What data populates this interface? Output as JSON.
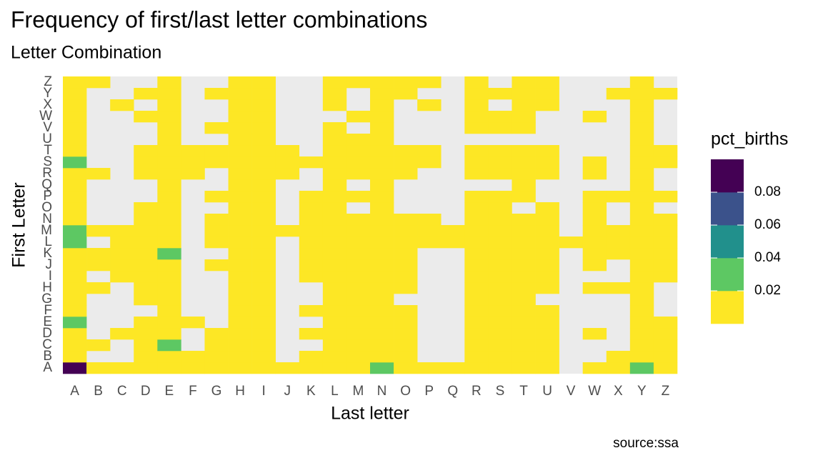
{
  "chart_data": {
    "type": "heatmap",
    "title": "Frequency of first/last letter combinations",
    "subtitle": "Letter Combination",
    "x_label": "Last letter",
    "y_label": "First Letter",
    "caption": "source:ssa",
    "legend_title": "pct_births",
    "x_categories": [
      "A",
      "B",
      "C",
      "D",
      "E",
      "F",
      "G",
      "H",
      "I",
      "J",
      "K",
      "L",
      "M",
      "N",
      "O",
      "P",
      "Q",
      "R",
      "S",
      "T",
      "U",
      "V",
      "W",
      "X",
      "Y",
      "Z"
    ],
    "y_categories": [
      "A",
      "B",
      "C",
      "D",
      "E",
      "F",
      "G",
      "H",
      "I",
      "J",
      "K",
      "L",
      "M",
      "N",
      "O",
      "P",
      "Q",
      "R",
      "S",
      "T",
      "U",
      "V",
      "W",
      "X",
      "Y",
      "Z"
    ],
    "legend_lim": [
      0,
      0.1
    ],
    "legend_ticks": [
      0.02,
      0.04,
      0.06,
      0.08
    ],
    "legend_colors": [
      "#fde725",
      "#5dc863",
      "#21908c",
      "#3b528b",
      "#440154"
    ],
    "missing_color": "#ebebeb",
    "values": [
      [
        0.09,
        0.01,
        0.01,
        0.01,
        0.01,
        0.01,
        0.01,
        0.01,
        0.01,
        0.01,
        0.01,
        0.01,
        0.01,
        0.03,
        0.01,
        0.01,
        0.01,
        0.01,
        0.01,
        0.01,
        0.01,
        null,
        0.01,
        0.01,
        0.03,
        0.01
      ],
      [
        0.01,
        null,
        null,
        0.01,
        0.01,
        0.01,
        0.01,
        0.01,
        0.01,
        null,
        0.01,
        0.01,
        0.01,
        0.01,
        0.01,
        null,
        null,
        0.01,
        0.01,
        0.01,
        0.01,
        null,
        null,
        0.01,
        0.01,
        0.01
      ],
      [
        0.01,
        0.01,
        null,
        0.01,
        0.03,
        null,
        0.01,
        0.01,
        0.01,
        null,
        null,
        0.01,
        0.01,
        0.01,
        0.01,
        null,
        null,
        0.01,
        0.01,
        0.01,
        0.01,
        null,
        null,
        null,
        0.01,
        0.01
      ],
      [
        0.01,
        null,
        0.01,
        0.01,
        0.01,
        null,
        0.01,
        0.01,
        0.01,
        null,
        0.01,
        0.01,
        0.01,
        0.01,
        0.01,
        null,
        null,
        0.01,
        0.01,
        0.01,
        0.01,
        null,
        0.01,
        null,
        0.01,
        0.01
      ],
      [
        0.03,
        null,
        null,
        0.01,
        0.01,
        0.01,
        null,
        0.01,
        0.01,
        null,
        null,
        0.01,
        0.01,
        0.01,
        0.01,
        null,
        null,
        0.01,
        0.01,
        0.01,
        0.01,
        null,
        null,
        null,
        0.01,
        0.01
      ],
      [
        0.01,
        null,
        null,
        null,
        0.01,
        null,
        null,
        0.01,
        0.01,
        null,
        0.01,
        0.01,
        0.01,
        0.01,
        0.01,
        null,
        null,
        0.01,
        0.01,
        0.01,
        0.01,
        null,
        null,
        null,
        0.01,
        null
      ],
      [
        0.01,
        null,
        null,
        0.01,
        0.01,
        null,
        null,
        0.01,
        0.01,
        null,
        null,
        0.01,
        0.01,
        0.01,
        null,
        null,
        null,
        0.01,
        0.01,
        0.01,
        null,
        null,
        null,
        null,
        0.01,
        null
      ],
      [
        0.01,
        0.01,
        null,
        0.01,
        0.01,
        null,
        null,
        0.01,
        0.01,
        null,
        null,
        0.01,
        0.01,
        0.01,
        0.01,
        null,
        null,
        0.01,
        0.01,
        0.01,
        0.01,
        null,
        0.01,
        0.01,
        0.01,
        null
      ],
      [
        0.01,
        null,
        0.01,
        0.01,
        0.01,
        null,
        null,
        0.01,
        0.01,
        null,
        0.01,
        0.01,
        0.01,
        0.01,
        0.01,
        null,
        null,
        0.01,
        0.01,
        0.01,
        0.01,
        null,
        null,
        null,
        0.01,
        0.01
      ],
      [
        0.01,
        0.01,
        0.01,
        0.01,
        0.01,
        null,
        0.01,
        0.01,
        0.01,
        null,
        0.01,
        0.01,
        0.01,
        0.01,
        0.01,
        null,
        null,
        0.01,
        0.01,
        0.01,
        0.01,
        null,
        0.01,
        null,
        0.01,
        0.01
      ],
      [
        0.01,
        0.01,
        0.01,
        0.01,
        0.03,
        null,
        null,
        0.01,
        0.01,
        null,
        0.01,
        0.01,
        0.01,
        0.01,
        0.01,
        null,
        null,
        0.01,
        0.01,
        0.01,
        0.01,
        null,
        0.01,
        0.01,
        0.01,
        0.01
      ],
      [
        0.03,
        null,
        0.01,
        0.01,
        0.01,
        null,
        0.01,
        0.01,
        0.01,
        null,
        0.01,
        0.01,
        0.01,
        0.01,
        0.01,
        0.01,
        0.01,
        0.01,
        0.01,
        0.01,
        0.01,
        0.01,
        0.01,
        0.01,
        0.01,
        0.01
      ],
      [
        0.03,
        0.01,
        0.01,
        0.01,
        0.01,
        null,
        0.01,
        0.01,
        0.01,
        0.01,
        0.01,
        0.01,
        0.01,
        0.01,
        0.01,
        0.01,
        0.01,
        0.01,
        0.01,
        0.01,
        0.01,
        null,
        0.01,
        0.01,
        0.01,
        0.01
      ],
      [
        0.01,
        null,
        null,
        0.01,
        0.01,
        null,
        0.01,
        0.01,
        0.01,
        null,
        0.01,
        0.01,
        0.01,
        0.01,
        0.01,
        0.01,
        null,
        0.01,
        0.01,
        0.01,
        0.01,
        null,
        0.01,
        null,
        0.01,
        0.01
      ],
      [
        0.01,
        null,
        null,
        0.01,
        0.01,
        null,
        null,
        0.01,
        0.01,
        null,
        0.01,
        0.01,
        null,
        0.01,
        null,
        null,
        null,
        0.01,
        0.01,
        null,
        0.01,
        null,
        0.01,
        null,
        0.01,
        null
      ],
      [
        0.01,
        null,
        null,
        null,
        0.01,
        null,
        0.01,
        0.01,
        0.01,
        null,
        0.01,
        0.01,
        0.01,
        0.01,
        null,
        null,
        null,
        0.01,
        0.01,
        0.01,
        null,
        null,
        0.01,
        0.01,
        0.01,
        0.01
      ],
      [
        0.01,
        null,
        null,
        null,
        0.01,
        null,
        null,
        0.01,
        0.01,
        null,
        null,
        0.01,
        null,
        0.01,
        null,
        null,
        null,
        null,
        null,
        0.01,
        null,
        null,
        null,
        null,
        0.01,
        null
      ],
      [
        0.01,
        0.01,
        null,
        0.01,
        0.01,
        0.01,
        null,
        0.01,
        0.01,
        0.01,
        null,
        0.01,
        0.01,
        0.01,
        0.01,
        null,
        null,
        0.01,
        0.01,
        0.01,
        0.01,
        null,
        0.01,
        null,
        0.01,
        null
      ],
      [
        0.03,
        null,
        null,
        0.01,
        0.01,
        0.01,
        0.01,
        0.01,
        0.01,
        0.01,
        0.01,
        0.01,
        0.01,
        0.01,
        0.01,
        0.01,
        null,
        0.01,
        0.01,
        0.01,
        0.01,
        null,
        0.01,
        null,
        0.01,
        0.01
      ],
      [
        0.01,
        null,
        null,
        0.01,
        0.01,
        0.01,
        0.01,
        0.01,
        0.01,
        0.01,
        null,
        0.01,
        0.01,
        0.01,
        0.01,
        0.01,
        null,
        0.01,
        0.01,
        0.01,
        0.01,
        null,
        null,
        null,
        0.01,
        0.01
      ],
      [
        0.01,
        null,
        null,
        null,
        0.01,
        null,
        null,
        0.01,
        0.01,
        null,
        null,
        0.01,
        0.01,
        0.01,
        null,
        null,
        null,
        null,
        null,
        null,
        null,
        null,
        null,
        null,
        0.01,
        null
      ],
      [
        0.01,
        null,
        null,
        null,
        0.01,
        null,
        0.01,
        0.01,
        0.01,
        null,
        null,
        0.01,
        null,
        0.01,
        null,
        null,
        null,
        0.01,
        0.01,
        0.01,
        null,
        null,
        null,
        null,
        0.01,
        null
      ],
      [
        0.01,
        null,
        null,
        0.01,
        0.01,
        null,
        null,
        0.01,
        0.01,
        null,
        null,
        null,
        0.01,
        0.01,
        null,
        null,
        null,
        0.01,
        0.01,
        0.01,
        null,
        null,
        0.01,
        null,
        0.01,
        null
      ],
      [
        0.01,
        null,
        0.01,
        null,
        0.01,
        null,
        null,
        0.01,
        0.01,
        null,
        null,
        0.01,
        null,
        0.01,
        null,
        0.01,
        null,
        0.01,
        null,
        0.01,
        0.01,
        null,
        null,
        null,
        0.01,
        null
      ],
      [
        0.01,
        null,
        null,
        0.01,
        0.01,
        null,
        0.01,
        0.01,
        0.01,
        null,
        null,
        0.01,
        null,
        0.01,
        0.01,
        null,
        null,
        0.01,
        0.01,
        0.01,
        0.01,
        null,
        null,
        0.01,
        0.01,
        0.01
      ],
      [
        0.01,
        0.01,
        null,
        null,
        0.01,
        null,
        null,
        0.01,
        0.01,
        null,
        null,
        0.01,
        0.01,
        0.01,
        0.01,
        0.01,
        null,
        0.01,
        null,
        0.01,
        0.01,
        null,
        null,
        null,
        0.01,
        null
      ]
    ]
  }
}
